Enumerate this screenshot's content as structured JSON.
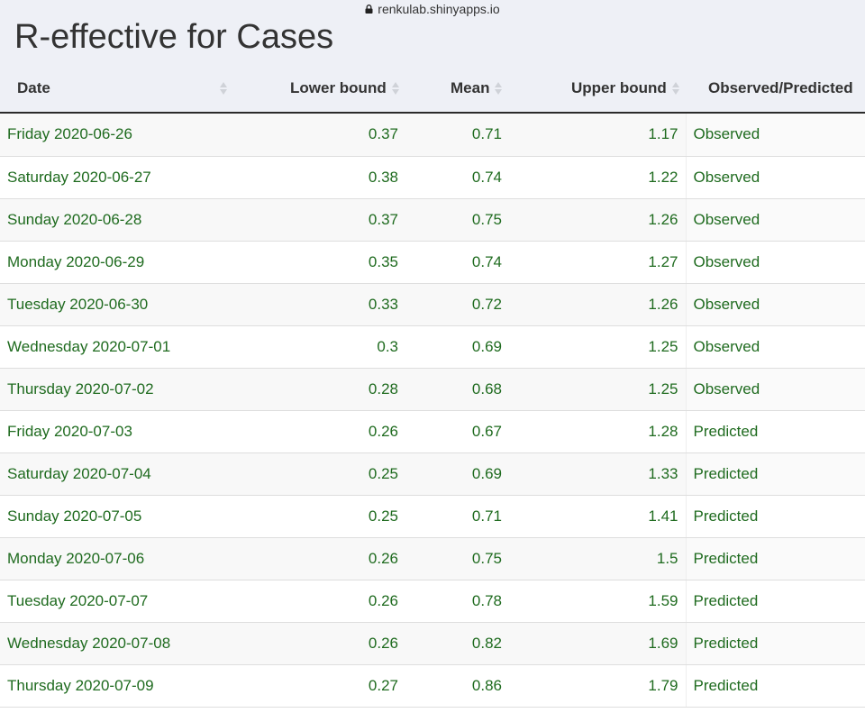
{
  "browser": {
    "url": "renkulab.shinyapps.io"
  },
  "page": {
    "title": "R-effective for Cases"
  },
  "table": {
    "headers": [
      "Date",
      "Lower bound",
      "Mean",
      "Upper bound",
      "Observed/Predicted"
    ],
    "rows": [
      [
        "Friday 2020-06-26",
        "0.37",
        "0.71",
        "1.17",
        "Observed"
      ],
      [
        "Saturday 2020-06-27",
        "0.38",
        "0.74",
        "1.22",
        "Observed"
      ],
      [
        "Sunday 2020-06-28",
        "0.37",
        "0.75",
        "1.26",
        "Observed"
      ],
      [
        "Monday 2020-06-29",
        "0.35",
        "0.74",
        "1.27",
        "Observed"
      ],
      [
        "Tuesday 2020-06-30",
        "0.33",
        "0.72",
        "1.26",
        "Observed"
      ],
      [
        "Wednesday 2020-07-01",
        "0.3",
        "0.69",
        "1.25",
        "Observed"
      ],
      [
        "Thursday 2020-07-02",
        "0.28",
        "0.68",
        "1.25",
        "Observed"
      ],
      [
        "Friday 2020-07-03",
        "0.26",
        "0.67",
        "1.28",
        "Predicted"
      ],
      [
        "Saturday 2020-07-04",
        "0.25",
        "0.69",
        "1.33",
        "Predicted"
      ],
      [
        "Sunday 2020-07-05",
        "0.25",
        "0.71",
        "1.41",
        "Predicted"
      ],
      [
        "Monday 2020-07-06",
        "0.26",
        "0.75",
        "1.5",
        "Predicted"
      ],
      [
        "Tuesday 2020-07-07",
        "0.26",
        "0.78",
        "1.59",
        "Predicted"
      ],
      [
        "Wednesday 2020-07-08",
        "0.26",
        "0.82",
        "1.69",
        "Predicted"
      ],
      [
        "Thursday 2020-07-09",
        "0.27",
        "0.86",
        "1.79",
        "Predicted"
      ]
    ]
  },
  "colors": {
    "observed_text": "#1f6b1f",
    "predicted_text": "#16166b",
    "header_bg": "#eef0f6"
  },
  "icons": {
    "lock": "lock-icon",
    "sort": "sort-icon"
  }
}
